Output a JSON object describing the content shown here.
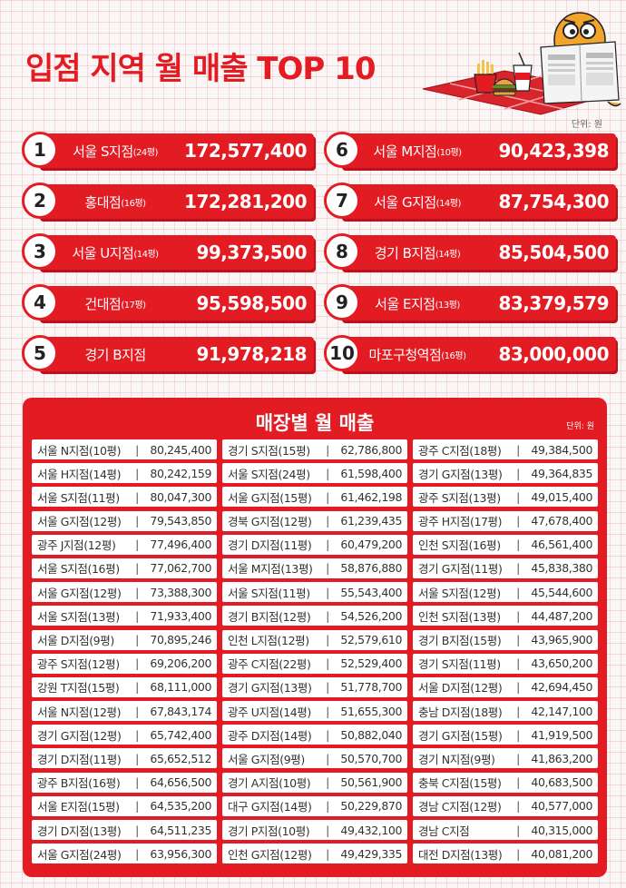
{
  "title": "입점 지역 월 매출 TOP 10",
  "unit_label": "단위: 원",
  "ranking": [
    {
      "rank": "1",
      "name": "서울 S지점",
      "size": "(24평)",
      "value": "172,577,400"
    },
    {
      "rank": "2",
      "name": "홍대점",
      "size": "(16평)",
      "value": "172,281,200"
    },
    {
      "rank": "3",
      "name": "서울 U지점",
      "size": "(14평)",
      "value": "99,373,500"
    },
    {
      "rank": "4",
      "name": "건대점",
      "size": "(17평)",
      "value": "95,598,500"
    },
    {
      "rank": "5",
      "name": "경기 B지점",
      "size": "",
      "value": "91,978,218"
    },
    {
      "rank": "6",
      "name": "서울 M지점",
      "size": "(10평)",
      "value": "90,423,398"
    },
    {
      "rank": "7",
      "name": "서울 G지점",
      "size": "(14평)",
      "value": "87,754,300"
    },
    {
      "rank": "8",
      "name": "경기 B지점",
      "size": "(14평)",
      "value": "85,504,500"
    },
    {
      "rank": "9",
      "name": "서울 E지점",
      "size": "(13평)",
      "value": "83,379,579"
    },
    {
      "rank": "10",
      "name": "마포구청역점",
      "size": "(16평)",
      "value": "83,000,000"
    }
  ],
  "store_sales": {
    "title": "매장별 월 매출",
    "unit_label": "단위: 원",
    "columns": [
      [
        {
          "name": "서울 N지점(10평)",
          "value": "80,245,400"
        },
        {
          "name": "서울 H지점(14평)",
          "value": "80,242,159"
        },
        {
          "name": "서울 S지점(11평)",
          "value": "80,047,300"
        },
        {
          "name": "서울 G지점(12평)",
          "value": "79,543,850"
        },
        {
          "name": "광주 J지점(12평)",
          "value": "77,496,400"
        },
        {
          "name": "서울 S지점(16평)",
          "value": "77,062,700"
        },
        {
          "name": "서울 G지점(12평)",
          "value": "73,388,300"
        },
        {
          "name": "서울 S지점(13평)",
          "value": "71,933,400"
        },
        {
          "name": "서울 D지점(9평)",
          "value": "70,895,246"
        },
        {
          "name": "광주 S지점(12평)",
          "value": "69,206,200"
        },
        {
          "name": "강원 T지점(15평)",
          "value": "68,111,000"
        },
        {
          "name": "서울 N지점(12평)",
          "value": "67,843,174"
        },
        {
          "name": "경기 G지점(12평)",
          "value": "65,742,400"
        },
        {
          "name": "경기 D지점(11평)",
          "value": "65,652,512"
        },
        {
          "name": "광주 B지점(16평)",
          "value": "64,656,500"
        },
        {
          "name": "서울 E지점(15평)",
          "value": "64,535,200"
        },
        {
          "name": "경기 D지점(13평)",
          "value": "64,511,235"
        },
        {
          "name": "서울 G지점(24평)",
          "value": "63,956,300"
        }
      ],
      [
        {
          "name": "경기 S지점(15평)",
          "value": "62,786,800"
        },
        {
          "name": "서울 S지점(24평)",
          "value": "61,598,400"
        },
        {
          "name": "서울 G지점(15평)",
          "value": "61,462,198"
        },
        {
          "name": "경북 G지점(12평)",
          "value": "61,239,435"
        },
        {
          "name": "경기 D지점(11평)",
          "value": "60,479,200"
        },
        {
          "name": "서울 M지점(13평)",
          "value": "58,876,880"
        },
        {
          "name": "서울 S지점(11평)",
          "value": "55,543,400"
        },
        {
          "name": "경기 B지점(12평)",
          "value": "54,526,200"
        },
        {
          "name": "인천 L지점(12평)",
          "value": "52,579,610"
        },
        {
          "name": "광주 C지점(22평)",
          "value": "52,529,400"
        },
        {
          "name": "경기 G지점(13평)",
          "value": "51,778,700"
        },
        {
          "name": "광주 U지점(14평)",
          "value": "51,655,300"
        },
        {
          "name": "광주 D지점(14평)",
          "value": "50,882,040"
        },
        {
          "name": "서울 G지점(9평)",
          "value": "50,570,700"
        },
        {
          "name": "경기 A지점(10평)",
          "value": "50,561,900"
        },
        {
          "name": "대구 G지점(14평)",
          "value": "50,229,870"
        },
        {
          "name": "경기 P지점(10평)",
          "value": "49,432,100"
        },
        {
          "name": "인천 G지점(12평)",
          "value": "49,429,335"
        }
      ],
      [
        {
          "name": "광주 C지점(18평)",
          "value": "49,384,500"
        },
        {
          "name": "경기 G지점(13평)",
          "value": "49,364,835"
        },
        {
          "name": "광주 S지점(13평)",
          "value": "49,015,400"
        },
        {
          "name": "광주 H지점(17평)",
          "value": "47,678,400"
        },
        {
          "name": "인천 S지점(16평)",
          "value": "46,561,400"
        },
        {
          "name": "경기 G지점(11평)",
          "value": "45,838,380"
        },
        {
          "name": "서울 S지점(12평)",
          "value": "45,544,600"
        },
        {
          "name": "인천 S지점(13평)",
          "value": "44,487,200"
        },
        {
          "name": "경기 B지점(15평)",
          "value": "43,965,900"
        },
        {
          "name": "경기 S지점(11평)",
          "value": "43,650,200"
        },
        {
          "name": "서울 D지점(12평)",
          "value": "42,694,450"
        },
        {
          "name": "충남 D지점(18평)",
          "value": "42,147,100"
        },
        {
          "name": "경기 G지점(15평)",
          "value": "41,919,500"
        },
        {
          "name": "경기 N지점(9평)",
          "value": "41,863,200"
        },
        {
          "name": "충북 C지점(15평)",
          "value": "40,683,500"
        },
        {
          "name": "경남 C지점(12평)",
          "value": "40,577,000"
        },
        {
          "name": "경남 C지점",
          "value": "40,315,000"
        },
        {
          "name": "대전 D지점(13평)",
          "value": "40,081,200"
        }
      ]
    ]
  },
  "colors": {
    "accent": "#e31b23",
    "panel": "#e31b23",
    "text_dark": "#222222"
  },
  "icons": [
    "newspaper-mascot-icon",
    "fries-icon",
    "burger-icon",
    "drink-icon",
    "picnic-mat-icon"
  ]
}
